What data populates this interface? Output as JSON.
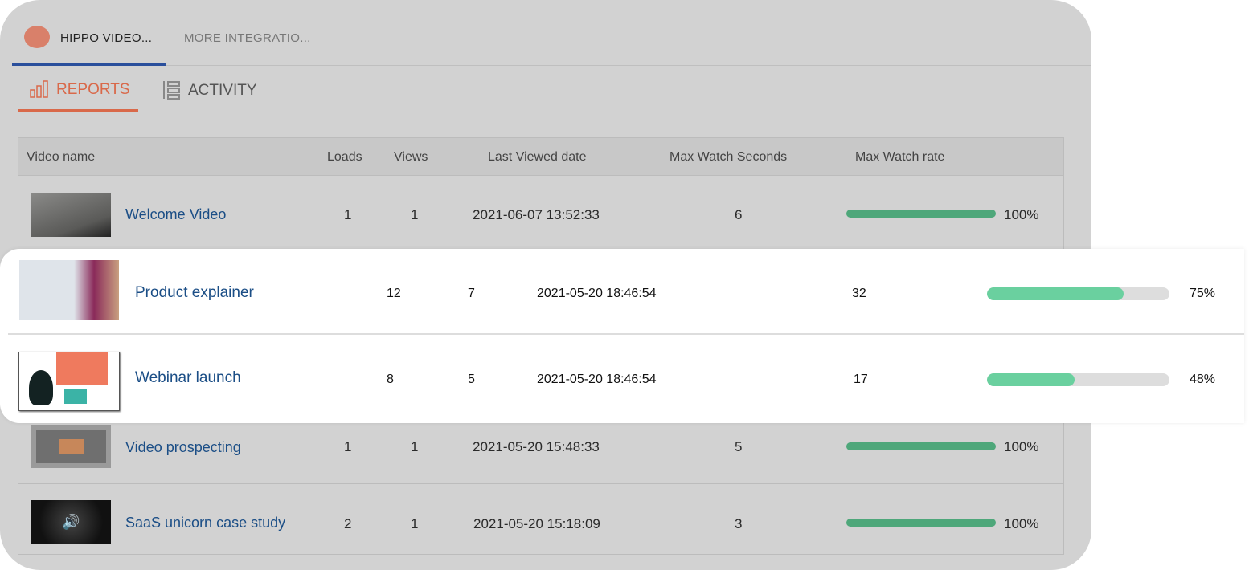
{
  "tabs": [
    {
      "label": "HIPPO VIDEO...",
      "active": true
    },
    {
      "label": "MORE INTEGRATIO..."
    }
  ],
  "subtabs": [
    {
      "label": "REPORTS",
      "icon": "bar-chart-icon",
      "active": true
    },
    {
      "label": "ACTIVITY",
      "icon": "list-icon"
    }
  ],
  "colors": {
    "accent": "#d9694a",
    "tab_underline": "#2a4f9c",
    "link": "#1b4e86",
    "bar": "#4ea77a",
    "bar_highlight": "#6ad09f"
  },
  "table": {
    "headers": [
      "Video name",
      "Loads",
      "Views",
      "Last Viewed date",
      "Max Watch Seconds",
      "Max Watch rate"
    ],
    "rows": [
      {
        "name": "Welcome Video",
        "loads": "1",
        "views": "1",
        "date": "2021-06-07 13:52:33",
        "seconds": "6",
        "rate": "100%",
        "rate_value": 100
      },
      {
        "name": "Video prospecting",
        "loads": "1",
        "views": "1",
        "date": "2021-05-20 15:48:33",
        "seconds": "5",
        "rate": "100%",
        "rate_value": 100
      },
      {
        "name": "SaaS unicorn case study",
        "loads": "2",
        "views": "1",
        "date": "2021-05-20 15:18:09",
        "seconds": "3",
        "rate": "100%",
        "rate_value": 100
      }
    ]
  },
  "highlighted": [
    {
      "name": "Product explainer",
      "loads": "12",
      "views": "7",
      "date": "2021-05-20 18:46:54",
      "seconds": "32",
      "rate": "75%",
      "rate_value": 75
    },
    {
      "name": "Webinar launch",
      "loads": "8",
      "views": "5",
      "date": "2021-05-20 18:46:54",
      "seconds": "17",
      "rate": "48%",
      "rate_value": 48
    }
  ]
}
